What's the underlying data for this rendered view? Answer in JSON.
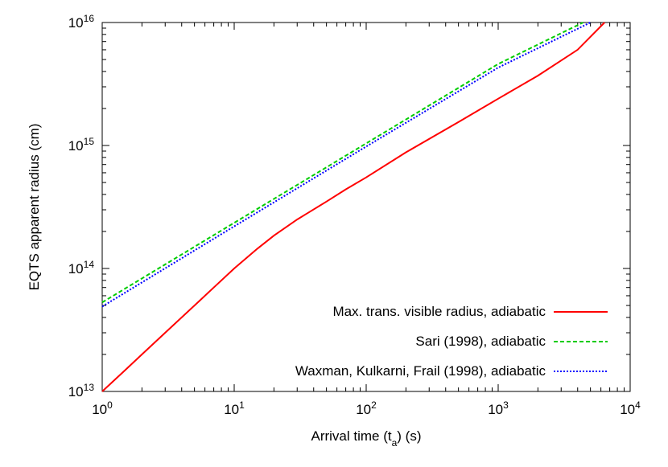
{
  "chart_data": {
    "type": "line",
    "title": "",
    "xlabel": {
      "main": "Arrival time (t",
      "sub": "a",
      "tail": ") (s)"
    },
    "ylabel": "EQTS apparent radius (cm)",
    "xscale": "log",
    "yscale": "log",
    "xlim": [
      1,
      10000
    ],
    "ylim": [
      10000000000000.0,
      1e+16
    ],
    "x_ticks": [
      {
        "base": "10",
        "exp": "0"
      },
      {
        "base": "10",
        "exp": "1"
      },
      {
        "base": "10",
        "exp": "2"
      },
      {
        "base": "10",
        "exp": "3"
      },
      {
        "base": "10",
        "exp": "4"
      }
    ],
    "y_ticks": [
      {
        "base": "10",
        "exp": "13"
      },
      {
        "base": "10",
        "exp": "14"
      },
      {
        "base": "10",
        "exp": "15"
      },
      {
        "base": "10",
        "exp": "16"
      }
    ],
    "grid": false,
    "legend_position": "bottom-right",
    "series": [
      {
        "name": "Max. trans. visible radius, adiabatic",
        "color": "#ff0000",
        "style": "solid",
        "x": [
          1,
          1.5,
          2,
          3,
          5,
          7,
          10,
          15,
          20,
          30,
          50,
          70,
          100,
          200,
          500,
          1000,
          2000,
          4000,
          6400
        ],
        "y": [
          10000000000000.0,
          15000000000000.0,
          20000000000000.0,
          30000000000000.0,
          50000000000000.0,
          70000000000000.0,
          100000000000000.0,
          145000000000000.0,
          185000000000000.0,
          250000000000000.0,
          350000000000000.0,
          440000000000000.0,
          550000000000000.0,
          880000000000000.0,
          1550000000000000.0,
          2400000000000000.0,
          3700000000000000.0,
          6000000000000000.0,
          1e+16
        ]
      },
      {
        "name": "Sari (1998), adiabatic",
        "color": "#00cc00",
        "style": "dashed",
        "x": [
          1,
          10,
          100,
          1000,
          4400
        ],
        "y": [
          53000000000000.0,
          235000000000000.0,
          1040000000000000.0,
          4600000000000000.0,
          1e+16
        ]
      },
      {
        "name": "Waxman, Kulkarni, Frail (1998), adiabatic",
        "color": "#0000ff",
        "style": "dotted",
        "x": [
          1,
          10,
          100,
          1000,
          5000
        ],
        "y": [
          49000000000000.0,
          220000000000000.0,
          980000000000000.0,
          4300000000000000.0,
          1e+16
        ]
      }
    ]
  }
}
